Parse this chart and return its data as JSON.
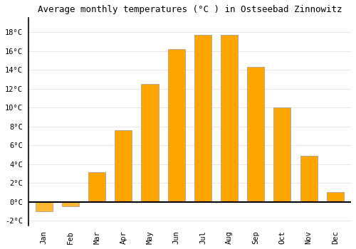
{
  "title": "Average monthly temperatures (°C ) in Ostseebad Zinnowitz",
  "months": [
    "Jan",
    "Feb",
    "Mar",
    "Apr",
    "May",
    "Jun",
    "Jul",
    "Aug",
    "Sep",
    "Oct",
    "Nov",
    "Dec"
  ],
  "temperatures": [
    -1.0,
    -0.5,
    3.1,
    7.6,
    12.5,
    16.2,
    17.7,
    17.7,
    14.3,
    10.0,
    4.9,
    1.0
  ],
  "bar_color_positive": "#FFA500",
  "bar_color_negative": "#FFB833",
  "bar_edge_color": "#999999",
  "background_color": "#ffffff",
  "grid_color": "#e8e8e8",
  "ylim": [
    -2.5,
    19.5
  ],
  "yticks": [
    -2,
    0,
    2,
    4,
    6,
    8,
    10,
    12,
    14,
    16,
    18
  ],
  "title_fontsize": 9,
  "tick_fontsize": 7.5,
  "font_family": "monospace"
}
